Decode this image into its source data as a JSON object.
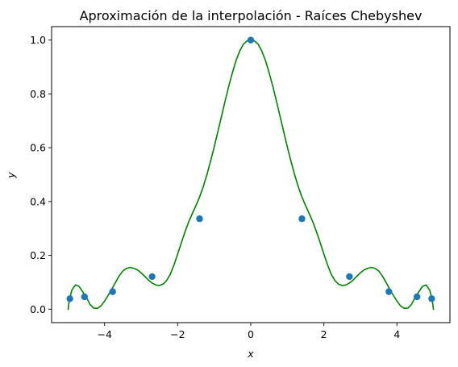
{
  "chart_data": {
    "type": "line",
    "title": "Aproximación de la interpolación - Raíces Chebyshev",
    "xlabel": "x",
    "ylabel": "y",
    "xlim": [
      -5.45,
      5.45
    ],
    "ylim": [
      -0.05,
      1.05
    ],
    "x_ticks": [
      -4,
      -2,
      0,
      2,
      4
    ],
    "x_tick_labels": [
      "−4",
      "−2",
      "0",
      "2",
      "4"
    ],
    "y_ticks": [
      0.0,
      0.2,
      0.4,
      0.6,
      0.8,
      1.0
    ],
    "y_tick_labels": [
      "0.0",
      "0.2",
      "0.4",
      "0.6",
      "0.8",
      "1.0"
    ],
    "grid": false,
    "legend": "none",
    "series": [
      {
        "kind": "line",
        "color": "#008000",
        "x": [
          -5.0,
          -4.97,
          -4.9,
          -4.8,
          -4.7,
          -4.6,
          -4.5,
          -4.4,
          -4.3,
          -4.2,
          -4.1,
          -4.0,
          -3.9,
          -3.8,
          -3.7,
          -3.6,
          -3.5,
          -3.4,
          -3.3,
          -3.2,
          -3.1,
          -3.0,
          -2.9,
          -2.8,
          -2.7,
          -2.6,
          -2.5,
          -2.4,
          -2.3,
          -2.2,
          -2.1,
          -2.0,
          -1.9,
          -1.8,
          -1.7,
          -1.6,
          -1.5,
          -1.4,
          -1.3,
          -1.2,
          -1.1,
          -1.0,
          -0.9,
          -0.8,
          -0.7,
          -0.6,
          -0.5,
          -0.4,
          -0.3,
          -0.2,
          -0.1,
          0.0,
          0.1,
          0.2,
          0.3,
          0.4,
          0.5,
          0.6,
          0.7,
          0.8,
          0.9,
          1.0,
          1.1,
          1.2,
          1.3,
          1.4,
          1.5,
          1.6,
          1.7,
          1.8,
          1.9,
          2.0,
          2.1,
          2.2,
          2.3,
          2.4,
          2.5,
          2.6,
          2.7,
          2.8,
          2.9,
          3.0,
          3.1,
          3.2,
          3.3,
          3.4,
          3.5,
          3.6,
          3.7,
          3.8,
          3.9,
          4.0,
          4.1,
          4.2,
          4.3,
          4.4,
          4.5,
          4.6,
          4.7,
          4.8,
          4.9,
          4.97,
          5.0
        ],
        "y": [
          -0.003,
          0.03,
          0.07,
          0.09,
          0.085,
          0.065,
          0.045,
          0.018,
          0.004,
          0.003,
          0.012,
          0.03,
          0.052,
          0.075,
          0.1,
          0.124,
          0.142,
          0.152,
          0.155,
          0.152,
          0.146,
          0.135,
          0.122,
          0.108,
          0.097,
          0.09,
          0.088,
          0.093,
          0.107,
          0.13,
          0.165,
          0.205,
          0.247,
          0.287,
          0.324,
          0.355,
          0.385,
          0.417,
          0.455,
          0.5,
          0.55,
          0.603,
          0.66,
          0.717,
          0.775,
          0.83,
          0.88,
          0.925,
          0.96,
          0.985,
          0.997,
          1.0,
          0.997,
          0.985,
          0.96,
          0.925,
          0.88,
          0.83,
          0.775,
          0.717,
          0.66,
          0.603,
          0.55,
          0.5,
          0.455,
          0.417,
          0.385,
          0.355,
          0.324,
          0.287,
          0.247,
          0.205,
          0.165,
          0.13,
          0.107,
          0.093,
          0.088,
          0.09,
          0.097,
          0.108,
          0.122,
          0.135,
          0.146,
          0.152,
          0.155,
          0.152,
          0.142,
          0.124,
          0.1,
          0.075,
          0.052,
          0.03,
          0.012,
          0.003,
          0.004,
          0.018,
          0.045,
          0.065,
          0.085,
          0.09,
          0.07,
          0.03,
          -0.003
        ]
      },
      {
        "kind": "scatter",
        "color": "#1f77b4",
        "x": [
          -4.95,
          -4.55,
          -3.78,
          -2.7,
          -1.4,
          0.0,
          1.4,
          2.7,
          3.78,
          4.55,
          4.95
        ],
        "y": [
          0.039,
          0.046,
          0.065,
          0.121,
          0.336,
          1.0,
          0.336,
          0.121,
          0.065,
          0.046,
          0.039
        ]
      }
    ]
  }
}
